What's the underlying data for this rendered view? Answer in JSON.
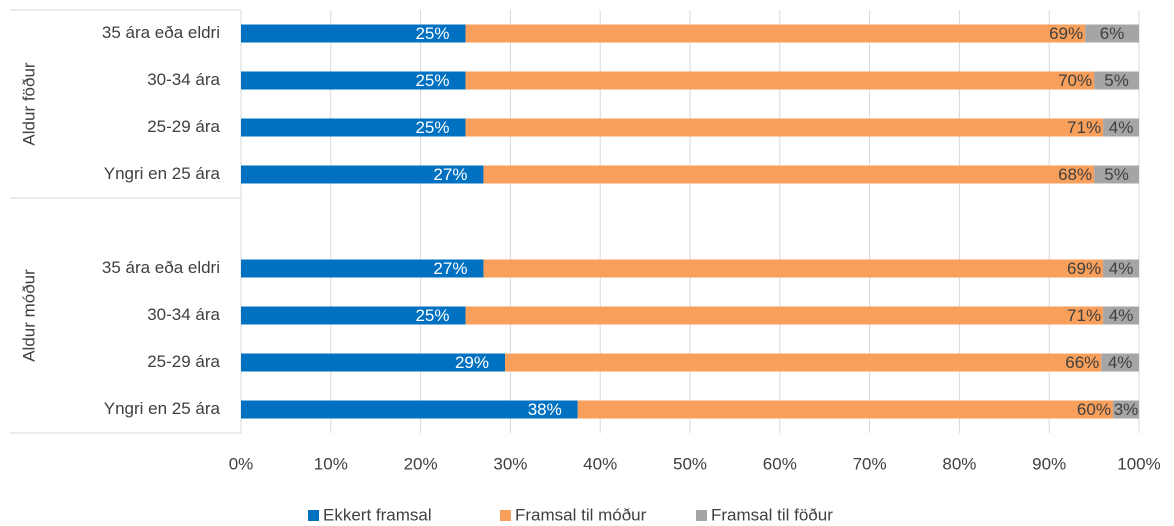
{
  "chart_data": {
    "type": "bar",
    "orientation": "horizontal",
    "stacked": true,
    "groups": [
      {
        "label": "Aldur föður",
        "categories": [
          "35 ára eða eldri",
          "30-34 ára",
          "25-29 ára",
          "Yngri en 25 ára"
        ]
      },
      {
        "label": "Aldur móður",
        "categories": [
          "35 ára eða eldri",
          "30-34 ára",
          "25-29 ára",
          "Yngri en 25 ára"
        ]
      }
    ],
    "series": [
      {
        "name": "Ekkert framsal",
        "color": "#0070c0",
        "values": [
          [
            25,
            25,
            25,
            27
          ],
          [
            27,
            25,
            29.4,
            37.5
          ]
        ],
        "value_labels": [
          [
            "25%",
            "25%",
            "25%",
            "27%"
          ],
          [
            "27%",
            "25%",
            "29%",
            "38%"
          ]
        ]
      },
      {
        "name": "Framsal til móður",
        "color": "#f79f5b",
        "values": [
          [
            69,
            70,
            71,
            68
          ],
          [
            69,
            71,
            66.4,
            59.6
          ]
        ],
        "value_labels": [
          [
            "69%",
            "70%",
            "71%",
            "68%"
          ],
          [
            "69%",
            "71%",
            "66%",
            "60%"
          ]
        ]
      },
      {
        "name": "Framsal til föður",
        "color": "#a5a5a5",
        "values": [
          [
            6,
            5,
            4,
            5
          ],
          [
            4,
            4,
            4.2,
            2.9
          ]
        ],
        "value_labels": [
          [
            "6%",
            "5%",
            "4%",
            "5%"
          ],
          [
            "4%",
            "4%",
            "4%",
            "3%"
          ]
        ]
      }
    ],
    "xlim": [
      0,
      100
    ],
    "xticks": [
      {
        "value": 0,
        "label": "0%"
      },
      {
        "value": 10,
        "label": "10%"
      },
      {
        "value": 20,
        "label": "20%"
      },
      {
        "value": 30,
        "label": "30%"
      },
      {
        "value": 40,
        "label": "40%"
      },
      {
        "value": 50,
        "label": "50%"
      },
      {
        "value": 60,
        "label": "60%"
      },
      {
        "value": 70,
        "label": "70%"
      },
      {
        "value": 80,
        "label": "80%"
      },
      {
        "value": 90,
        "label": "90%"
      },
      {
        "value": 100,
        "label": "100%"
      }
    ],
    "grid": true,
    "legend": "bottom"
  }
}
